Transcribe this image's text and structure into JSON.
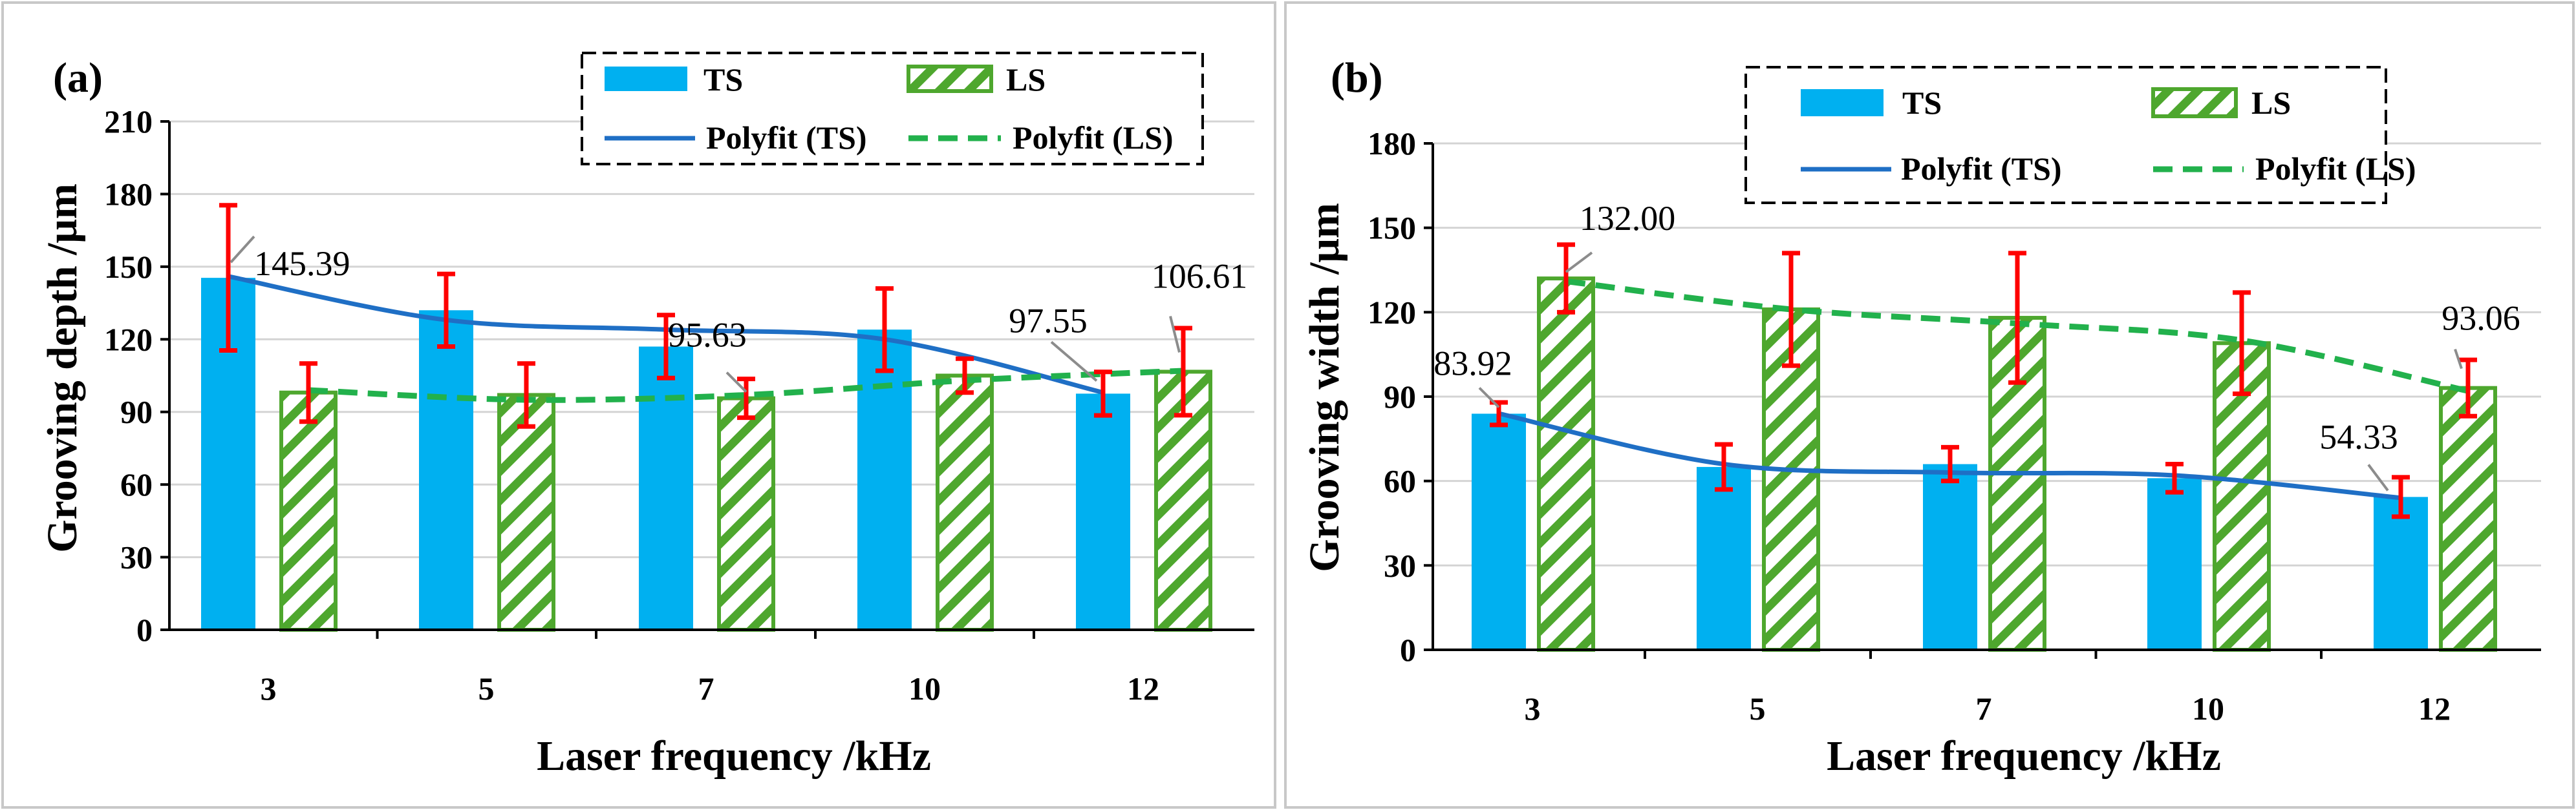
{
  "colors": {
    "ts_bar": "#00b0f0",
    "ls_bar": "#4ea72e",
    "error_bar": "#ff0000",
    "fit_ts": "#1f6fc5",
    "fit_ls": "#22b14c"
  },
  "chart_data": [
    {
      "type": "bar",
      "panel_label": "(a)",
      "xlabel": "Laser frequency /kHz",
      "ylabel": "Grooving depth /μm",
      "categories": [
        "3",
        "5",
        "7",
        "10",
        "12"
      ],
      "ylim": [
        0,
        210
      ],
      "yticks": [
        "0",
        "30",
        "60",
        "90",
        "120",
        "150",
        "180",
        "210"
      ],
      "grid": true,
      "legend_position": "top-right",
      "legend": {
        "ts": "TS",
        "ls": "LS",
        "fit_ts": "Polyfit (TS)",
        "fit_ls": "Polyfit (LS)"
      },
      "series": [
        {
          "name": "TS",
          "values": [
            145.39,
            132,
            117,
            124,
            97.55
          ],
          "error": [
            30,
            15,
            13,
            17,
            9
          ]
        },
        {
          "name": "LS",
          "values": [
            98,
            97,
            95.63,
            105,
            106.61
          ],
          "error": [
            12,
            13,
            8,
            7,
            18
          ]
        }
      ],
      "polyfit": [
        {
          "name": "Polyfit (TS)",
          "values": [
            146,
            128,
            124,
            120,
            98
          ]
        },
        {
          "name": "Polyfit (LS)",
          "values": [
            99,
            95,
            97,
            103,
            107
          ]
        }
      ],
      "annotations": [
        {
          "text": "145.39",
          "series": 0,
          "index": 0
        },
        {
          "text": "95.63",
          "series": 1,
          "index": 2
        },
        {
          "text": "97.55",
          "series": 0,
          "index": 4
        },
        {
          "text": "106.61",
          "series": 1,
          "index": 4
        }
      ]
    },
    {
      "type": "bar",
      "panel_label": "(b)",
      "xlabel": "Laser frequency /kHz",
      "ylabel": "Grooving width /μm",
      "categories": [
        "3",
        "5",
        "7",
        "10",
        "12"
      ],
      "ylim": [
        0,
        180
      ],
      "yticks": [
        "0",
        "30",
        "60",
        "90",
        "120",
        "150",
        "180"
      ],
      "grid": true,
      "legend_position": "top-right",
      "legend": {
        "ts": "TS",
        "ls": "LS",
        "fit_ts": "Polyfit (TS)",
        "fit_ls": "Polyfit (LS)"
      },
      "series": [
        {
          "name": "TS",
          "values": [
            83.92,
            65,
            66,
            61,
            54.33
          ],
          "error": [
            4,
            8,
            6,
            5,
            7
          ]
        },
        {
          "name": "LS",
          "values": [
            132.0,
            121,
            118,
            109,
            93.06
          ],
          "error": [
            12,
            20,
            23,
            18,
            10
          ]
        }
      ],
      "polyfit": [
        {
          "name": "Polyfit (TS)",
          "values": [
            84,
            66,
            63,
            62,
            54
          ]
        },
        {
          "name": "Polyfit (LS)",
          "values": [
            131,
            121,
            116,
            110,
            92
          ]
        }
      ],
      "annotations": [
        {
          "text": "83.92",
          "series": 0,
          "index": 0
        },
        {
          "text": "132.00",
          "series": 1,
          "index": 0
        },
        {
          "text": "54.33",
          "series": 0,
          "index": 4
        },
        {
          "text": "93.06",
          "series": 1,
          "index": 4
        }
      ]
    }
  ]
}
